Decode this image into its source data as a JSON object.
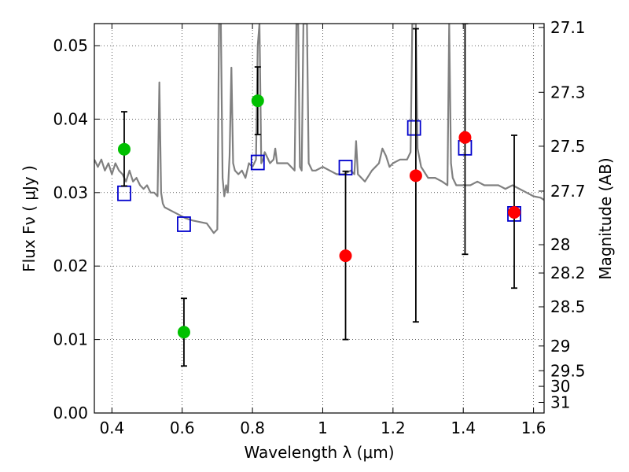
{
  "chart_data": {
    "type": "scatter",
    "xlabel": "Wavelength  λ (μm)",
    "ylabel": "Flux  Fν  ( μJy )",
    "y2label": "Magnitude (AB)",
    "xlim": [
      0.35,
      1.63
    ],
    "ylim": [
      0.0,
      0.053
    ],
    "grid": true,
    "x_ticks": [
      {
        "v": 0.4,
        "label": "0.4"
      },
      {
        "v": 0.6,
        "label": "0.6"
      },
      {
        "v": 0.8,
        "label": "0.8"
      },
      {
        "v": 1.0,
        "label": "1"
      },
      {
        "v": 1.2,
        "label": "1.2"
      },
      {
        "v": 1.4,
        "label": "1.4"
      },
      {
        "v": 1.6,
        "label": "1.6"
      }
    ],
    "y_ticks": [
      {
        "v": 0.0,
        "label": "0.00"
      },
      {
        "v": 0.01,
        "label": "0.01"
      },
      {
        "v": 0.02,
        "label": "0.02"
      },
      {
        "v": 0.03,
        "label": "0.03"
      },
      {
        "v": 0.04,
        "label": "0.04"
      },
      {
        "v": 0.05,
        "label": "0.05"
      }
    ],
    "y2_ticks": [
      {
        "mag": 27.1,
        "label": "27.1"
      },
      {
        "mag": 27.3,
        "label": "27.3"
      },
      {
        "mag": 27.5,
        "label": "27.5"
      },
      {
        "mag": 27.7,
        "label": "27.7"
      },
      {
        "mag": 28,
        "label": "28"
      },
      {
        "mag": 28.2,
        "label": "28.2"
      },
      {
        "mag": 28.5,
        "label": "28.5"
      },
      {
        "mag": 29,
        "label": "29"
      },
      {
        "mag": 29.5,
        "label": "29.5"
      },
      {
        "mag": 30,
        "label": "30"
      },
      {
        "mag": 31,
        "label": "31"
      }
    ],
    "series": [
      {
        "kind": "line",
        "color": "#808080",
        "x": [
          0.35,
          0.36,
          0.37,
          0.38,
          0.39,
          0.4,
          0.41,
          0.42,
          0.43,
          0.44,
          0.45,
          0.46,
          0.47,
          0.48,
          0.49,
          0.5,
          0.51,
          0.52,
          0.53,
          0.535,
          0.54,
          0.545,
          0.55,
          0.57,
          0.59,
          0.61,
          0.63,
          0.65,
          0.67,
          0.69,
          0.7,
          0.705,
          0.71,
          0.715,
          0.72,
          0.725,
          0.73,
          0.735,
          0.74,
          0.745,
          0.75,
          0.76,
          0.77,
          0.78,
          0.79,
          0.8,
          0.81,
          0.815,
          0.82,
          0.825,
          0.83,
          0.835,
          0.84,
          0.85,
          0.86,
          0.865,
          0.87,
          0.88,
          0.9,
          0.92,
          0.925,
          0.93,
          0.935,
          0.94,
          0.945,
          0.95,
          0.955,
          0.96,
          0.97,
          0.98,
          1.0,
          1.02,
          1.04,
          1.06,
          1.08,
          1.09,
          1.095,
          1.1,
          1.12,
          1.14,
          1.16,
          1.17,
          1.18,
          1.19,
          1.2,
          1.22,
          1.24,
          1.25,
          1.255,
          1.26,
          1.265,
          1.27,
          1.28,
          1.3,
          1.32,
          1.34,
          1.355,
          1.36,
          1.365,
          1.37,
          1.38,
          1.4,
          1.42,
          1.44,
          1.46,
          1.48,
          1.5,
          1.52,
          1.54,
          1.56,
          1.58,
          1.6,
          1.62,
          1.63
        ],
        "y": [
          0.0345,
          0.0335,
          0.0345,
          0.033,
          0.034,
          0.0325,
          0.034,
          0.033,
          0.0325,
          0.0315,
          0.033,
          0.0315,
          0.032,
          0.031,
          0.0305,
          0.031,
          0.03,
          0.03,
          0.0295,
          0.045,
          0.03,
          0.0285,
          0.028,
          0.0275,
          0.027,
          0.0265,
          0.0262,
          0.026,
          0.0258,
          0.0245,
          0.025,
          0.053,
          0.053,
          0.032,
          0.0295,
          0.031,
          0.03,
          0.035,
          0.047,
          0.034,
          0.033,
          0.0325,
          0.033,
          0.032,
          0.034,
          0.0335,
          0.0345,
          0.05,
          0.053,
          0.034,
          0.0345,
          0.0355,
          0.035,
          0.034,
          0.0345,
          0.036,
          0.034,
          0.034,
          0.034,
          0.033,
          0.053,
          0.053,
          0.0335,
          0.033,
          0.053,
          0.053,
          0.053,
          0.034,
          0.033,
          0.033,
          0.0335,
          0.033,
          0.0325,
          0.0325,
          0.033,
          0.0325,
          0.037,
          0.0325,
          0.0315,
          0.033,
          0.034,
          0.036,
          0.035,
          0.0335,
          0.034,
          0.0345,
          0.0345,
          0.0355,
          0.053,
          0.053,
          0.053,
          0.036,
          0.0335,
          0.032,
          0.032,
          0.0315,
          0.031,
          0.053,
          0.034,
          0.032,
          0.031,
          0.031,
          0.031,
          0.0315,
          0.031,
          0.031,
          0.031,
          0.0305,
          0.031,
          0.0305,
          0.03,
          0.0295,
          0.0293,
          0.029
        ]
      },
      {
        "kind": "points",
        "marker": "open-square",
        "color": "#0000cc",
        "x": [
          0.435,
          0.605,
          0.815,
          1.065,
          1.26,
          1.405,
          1.545
        ],
        "y": [
          0.0299,
          0.0257,
          0.0341,
          0.0334,
          0.0388,
          0.0361,
          0.0271
        ]
      },
      {
        "kind": "points",
        "marker": "filled-circle",
        "color": "#00c000",
        "x": [
          0.435,
          0.605,
          0.815
        ],
        "y": [
          0.0359,
          0.011,
          0.0425
        ],
        "yerr_low": [
          0.0309,
          0.0064,
          0.0379
        ],
        "yerr_high": [
          0.041,
          0.0156,
          0.0471
        ]
      },
      {
        "kind": "points",
        "marker": "filled-circle",
        "color": "#ff0000",
        "x": [
          1.065,
          1.265,
          1.405,
          1.545
        ],
        "y": [
          0.0214,
          0.0323,
          0.0375,
          0.0273
        ],
        "yerr_low": [
          0.01,
          0.0124,
          0.0216,
          0.017
        ],
        "yerr_high": [
          0.0329,
          0.0523,
          0.053,
          0.0378
        ]
      }
    ]
  }
}
